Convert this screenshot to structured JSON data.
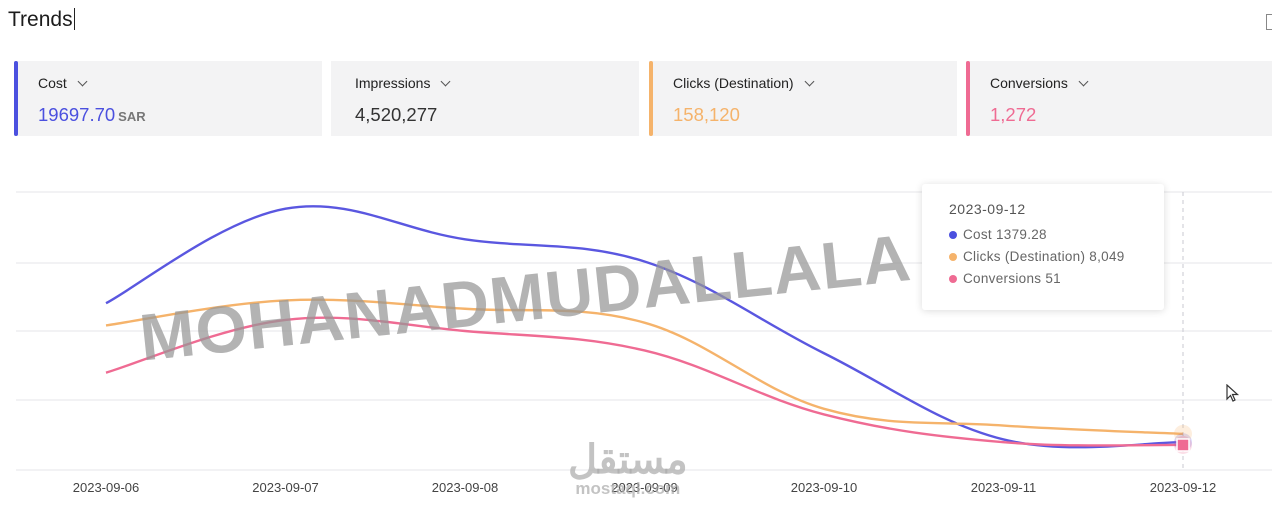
{
  "page": {
    "title": "Trends"
  },
  "metrics": [
    {
      "label": "Cost",
      "value": "19697.70",
      "unit": "SAR",
      "color": "#4b50df"
    },
    {
      "label": "Impressions",
      "value": "4,520,277",
      "unit": "",
      "color": "#333333"
    },
    {
      "label": "Clicks (Destination)",
      "value": "158,120",
      "unit": "",
      "color": "#f5b36b"
    },
    {
      "label": "Conversions",
      "value": "1,272",
      "unit": "",
      "color": "#ef6b93"
    }
  ],
  "tooltip": {
    "date": "2023-09-12",
    "rows": [
      {
        "name": "Cost",
        "value": "1379.28",
        "color": "#4b50df"
      },
      {
        "name": "Clicks (Destination)",
        "value": "8,049",
        "color": "#f5b36b"
      },
      {
        "name": "Conversions",
        "value": "51",
        "color": "#ef6b93"
      }
    ]
  },
  "watermark": {
    "text": "MOHANADMUDALLALA",
    "logo_ar": "مستقل",
    "logo_latin": "mostaql.com"
  },
  "chart_data": {
    "type": "line",
    "x": [
      "2023-09-06",
      "2023-09-07",
      "2023-09-08",
      "2023-09-09",
      "2023-09-10",
      "2023-09-11",
      "2023-09-12"
    ],
    "grid": true,
    "legend": "none",
    "series": [
      {
        "name": "Cost",
        "color": "#5a57e0",
        "values": [
          0.6,
          0.94,
          0.83,
          0.75,
          0.42,
          0.11,
          0.1
        ]
      },
      {
        "name": "Clicks (Destination)",
        "color": "#f5b36b",
        "values": [
          0.52,
          0.61,
          0.58,
          0.53,
          0.22,
          0.16,
          0.13
        ]
      },
      {
        "name": "Conversions",
        "color": "#ef6b93",
        "values": [
          0.35,
          0.54,
          0.5,
          0.43,
          0.2,
          0.1,
          0.09
        ]
      }
    ]
  }
}
